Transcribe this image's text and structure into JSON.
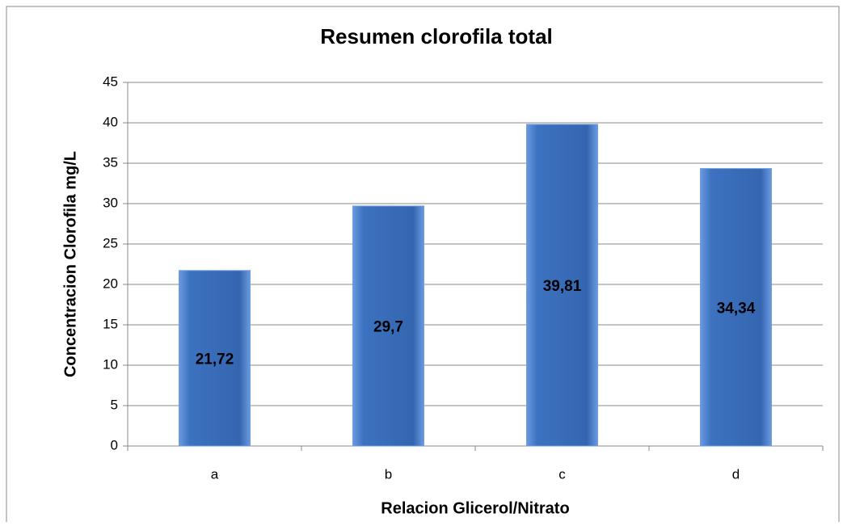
{
  "chart_data": {
    "type": "bar",
    "title": "Resumen clorofila total",
    "x_label": "Relacion Glicerol/Nitrato",
    "y_label": "Concentracion Clorofila mg/L",
    "categories": [
      "a",
      "b",
      "c",
      "d"
    ],
    "values": [
      21.72,
      29.7,
      39.81,
      34.34
    ],
    "value_labels": [
      "21,72",
      "29,7",
      "39,81",
      "34,34"
    ],
    "color": "#3d72c0",
    "ylim": [
      0,
      45
    ],
    "yticks": [
      0,
      5,
      10,
      15,
      20,
      25,
      30,
      35,
      40,
      45
    ],
    "grid": true
  }
}
